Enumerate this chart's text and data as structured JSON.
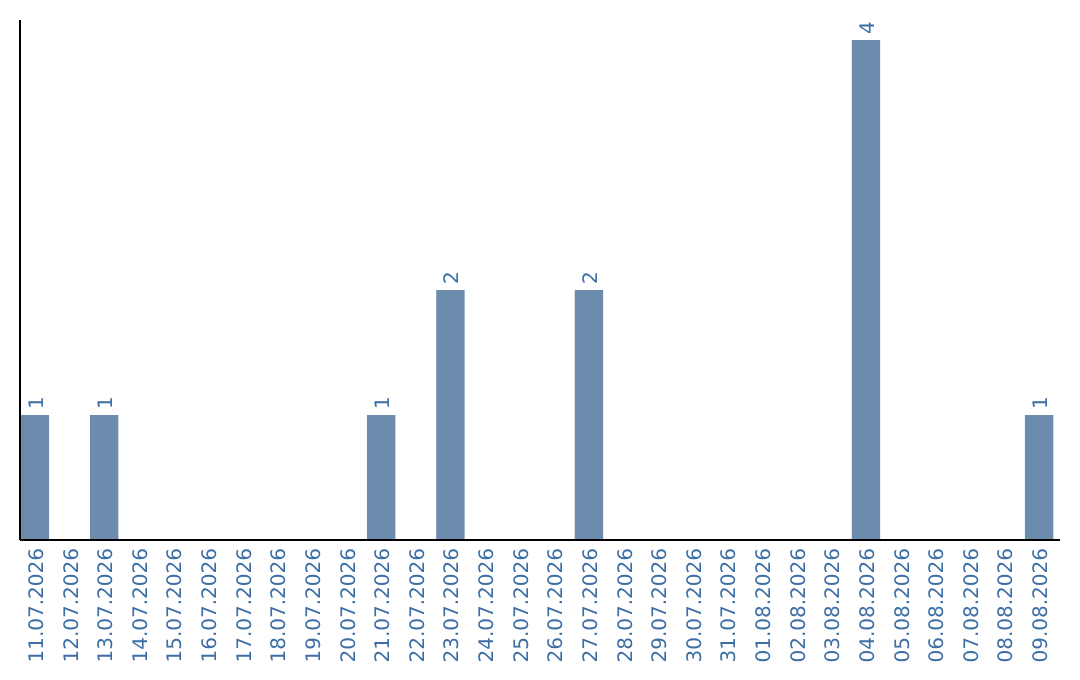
{
  "chart_data": {
    "type": "bar",
    "categories": [
      "11.07.2026",
      "12.07.2026",
      "13.07.2026",
      "14.07.2026",
      "15.07.2026",
      "16.07.2026",
      "17.07.2026",
      "18.07.2026",
      "19.07.2026",
      "20.07.2026",
      "21.07.2026",
      "22.07.2026",
      "23.07.2026",
      "24.07.2026",
      "25.07.2026",
      "26.07.2026",
      "27.07.2026",
      "28.07.2026",
      "29.07.2026",
      "30.07.2026",
      "31.07.2026",
      "01.08.2026",
      "02.08.2026",
      "03.08.2026",
      "04.08.2026",
      "05.08.2026",
      "06.08.2026",
      "07.08.2026",
      "08.08.2026",
      "09.08.2026"
    ],
    "values": [
      1,
      0,
      1,
      0,
      0,
      0,
      0,
      0,
      0,
      0,
      1,
      0,
      2,
      0,
      0,
      0,
      2,
      0,
      0,
      0,
      0,
      0,
      0,
      0,
      4,
      0,
      0,
      0,
      0,
      1
    ],
    "value_labels": [
      "1",
      null,
      "1",
      null,
      null,
      null,
      null,
      null,
      null,
      null,
      "1",
      null,
      "2",
      null,
      null,
      null,
      "2",
      null,
      null,
      null,
      null,
      null,
      null,
      null,
      "4",
      null,
      null,
      null,
      null,
      "1"
    ],
    "color": "#6b8cad"
  }
}
